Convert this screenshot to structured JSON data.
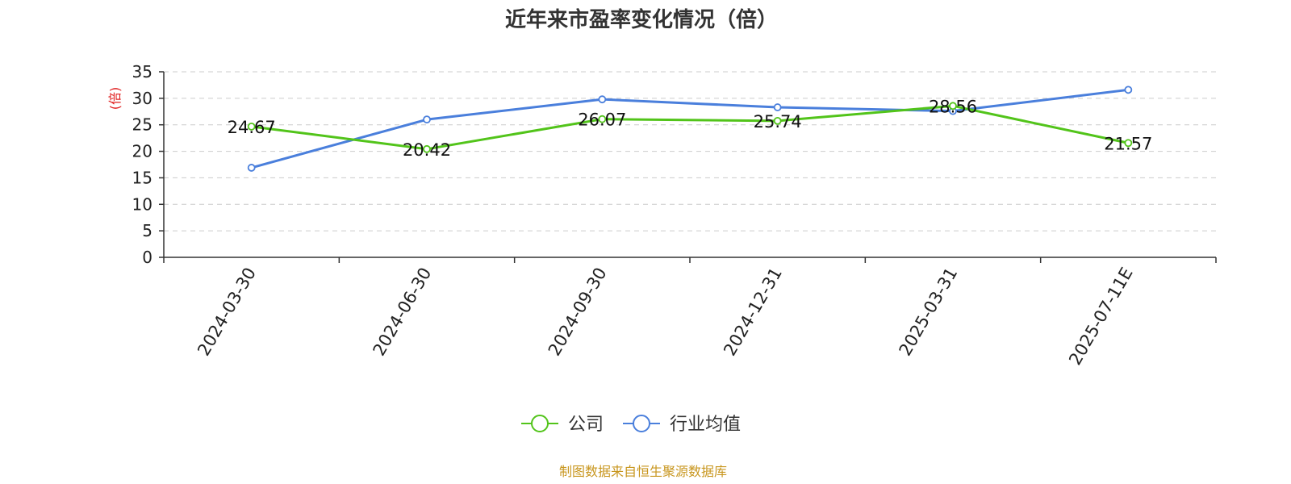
{
  "chart_data": {
    "type": "line",
    "title": "近年来市盈率变化情况（倍）",
    "ylabel": "(倍)",
    "xlabel": "",
    "categories": [
      "2024-03-30",
      "2024-06-30",
      "2024-09-30",
      "2024-12-31",
      "2025-03-31",
      "2025-07-11E"
    ],
    "ylim": [
      0,
      35
    ],
    "yticks": [
      0,
      5,
      10,
      15,
      20,
      25,
      30,
      35
    ],
    "grid": true,
    "legend_position": "bottom",
    "series": [
      {
        "name": "公司",
        "color": "#52c41a",
        "values": [
          24.67,
          20.42,
          26.07,
          25.74,
          28.56,
          21.57
        ],
        "labels": [
          "24.67",
          "20.42",
          "26.07",
          "25.74",
          "28.56",
          "21.57"
        ]
      },
      {
        "name": "行业均值",
        "color": "#4a7fdc",
        "values": [
          16.9,
          26.0,
          29.8,
          28.3,
          27.6,
          31.6
        ]
      }
    ]
  },
  "source_text": "制图数据来自恒生聚源数据库",
  "colors": {
    "ylabel": "#e02020",
    "source": "#c8961e",
    "axis": "#333333",
    "grid": "#cccccc"
  }
}
